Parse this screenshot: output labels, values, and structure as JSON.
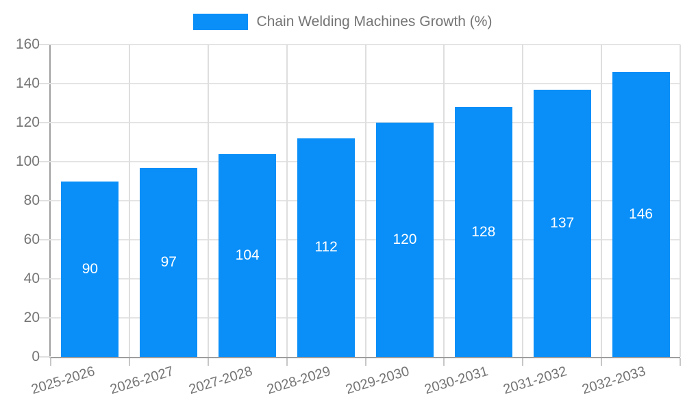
{
  "legend": {
    "label": "Chain Welding Machines Growth (%)"
  },
  "chart_data": {
    "type": "bar",
    "title": "Chain Welding Machines Growth (%)",
    "series_name": "Chain Welding Machines Growth (%)",
    "categories": [
      "2025-2026",
      "2026-2027",
      "2027-2028",
      "2028-2029",
      "2029-2030",
      "2030-2031",
      "2031-2032",
      "2032-2033"
    ],
    "values": [
      90,
      97,
      104,
      112,
      120,
      128,
      137,
      146
    ],
    "data_labels": [
      "90",
      "97",
      "104",
      "112",
      "120",
      "128",
      "137",
      "146"
    ],
    "xlabel": "",
    "ylabel": "",
    "ylim": [
      0,
      160
    ],
    "yticks": [
      0,
      20,
      40,
      60,
      80,
      100,
      120,
      140,
      160
    ],
    "grid": true,
    "legend_position": "top",
    "bar_labels_inside": true,
    "colors": {
      "bar": "#0a8ff8",
      "bar_label": "#ffffff",
      "axis_text": "#757575",
      "axis_line": "#9e9e9e",
      "gridline_h": "#e4e4e4",
      "gridline_v": "#dedede",
      "tick": "#c6c6c6",
      "background": "#ffffff"
    }
  }
}
